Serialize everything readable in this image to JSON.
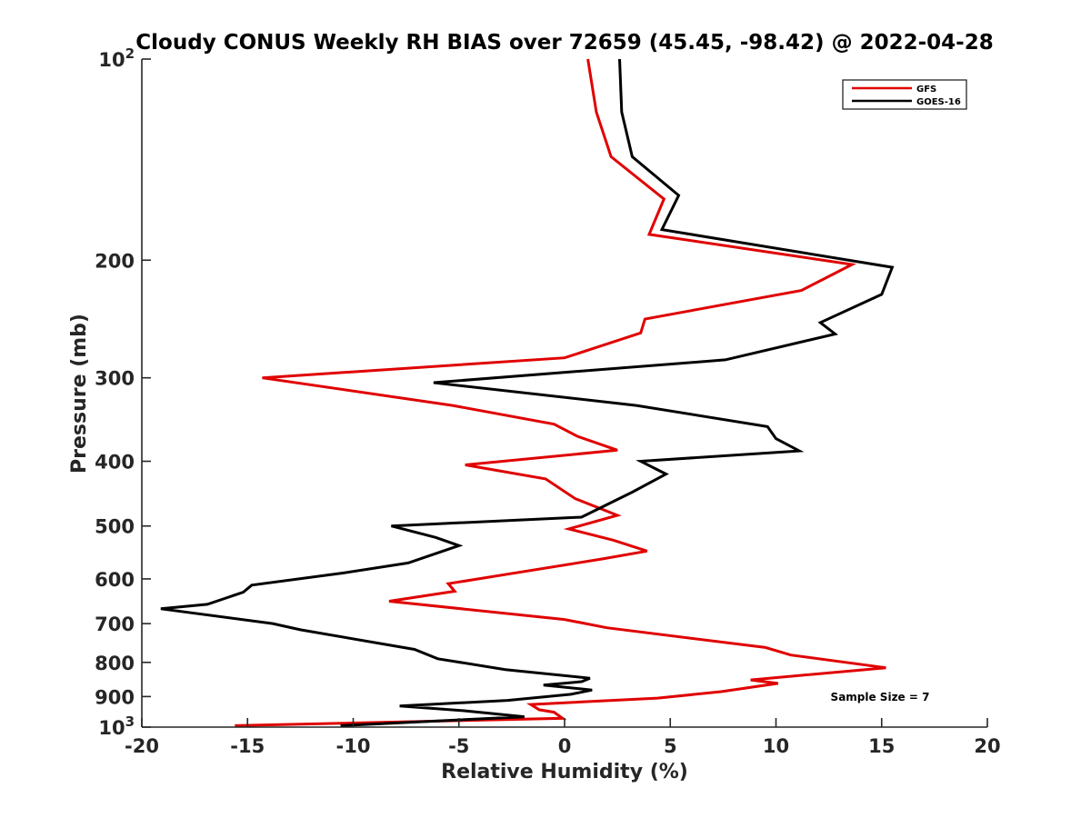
{
  "chart_data": {
    "type": "line",
    "title": "Cloudy CONUS Weekly RH BIAS over 72659 (45.45, -98.42) @ 2022-04-28",
    "xlabel": "Relative Humidity (%)",
    "ylabel": "Pressure (mb)",
    "xlim": [
      -20,
      20
    ],
    "ylim": [
      100,
      1000
    ],
    "yscale": "log",
    "y_reversed": true,
    "grid": false,
    "legend_position": "top-right",
    "x_ticks": [
      -20,
      -15,
      -10,
      -5,
      0,
      5,
      10,
      15,
      20
    ],
    "x_tick_labels": [
      "-20",
      "-15",
      "-10",
      "-5",
      "0",
      "5",
      "10",
      "15",
      "20"
    ],
    "y_ticks": [
      {
        "value": 100,
        "base": "10",
        "exp": "2"
      },
      {
        "value": 200,
        "label": "200"
      },
      {
        "value": 300,
        "label": "300"
      },
      {
        "value": 400,
        "label": "400"
      },
      {
        "value": 500,
        "label": "500"
      },
      {
        "value": 600,
        "label": "600"
      },
      {
        "value": 700,
        "label": "700"
      },
      {
        "value": 800,
        "label": "800"
      },
      {
        "value": 900,
        "label": "900"
      },
      {
        "value": 1000,
        "base": "10",
        "exp": "3"
      }
    ],
    "annotation": "Sample Size = 7",
    "series": [
      {
        "name": "GFS",
        "color": "#e00000",
        "points": [
          [
            1.1,
            100
          ],
          [
            1.5,
            120
          ],
          [
            2.2,
            140
          ],
          [
            4.7,
            162
          ],
          [
            4.0,
            183
          ],
          [
            13.6,
            203
          ],
          [
            11.2,
            222
          ],
          [
            3.8,
            245
          ],
          [
            3.6,
            257
          ],
          [
            0.0,
            280
          ],
          [
            -14.3,
            300
          ],
          [
            -5.3,
            330
          ],
          [
            -0.5,
            352
          ],
          [
            0.6,
            367
          ],
          [
            2.5,
            385
          ],
          [
            -4.7,
            405
          ],
          [
            -0.9,
            425
          ],
          [
            0.5,
            455
          ],
          [
            2.5,
            482
          ],
          [
            0.2,
            505
          ],
          [
            2.3,
            525
          ],
          [
            3.9,
            545
          ],
          [
            1.8,
            560
          ],
          [
            -5.5,
            610
          ],
          [
            -5.2,
            626
          ],
          [
            -8.3,
            648
          ],
          [
            0.0,
            690
          ],
          [
            2.0,
            710
          ],
          [
            9.5,
            760
          ],
          [
            10.7,
            780
          ],
          [
            15.2,
            815
          ],
          [
            8.8,
            850
          ],
          [
            10.1,
            860
          ],
          [
            7.4,
            885
          ],
          [
            4.4,
            905
          ],
          [
            -1.6,
            925
          ],
          [
            -1.2,
            942
          ],
          [
            -0.5,
            950
          ],
          [
            -0.1,
            970
          ],
          [
            -15.6,
            995
          ]
        ]
      },
      {
        "name": "GOES-16",
        "color": "#000000",
        "points": [
          [
            2.6,
            100
          ],
          [
            2.7,
            120
          ],
          [
            3.2,
            140
          ],
          [
            5.4,
            160
          ],
          [
            4.6,
            180
          ],
          [
            15.5,
            205
          ],
          [
            15.0,
            225
          ],
          [
            12.1,
            248
          ],
          [
            12.8,
            258
          ],
          [
            7.6,
            282
          ],
          [
            -6.2,
            305
          ],
          [
            3.4,
            330
          ],
          [
            9.6,
            355
          ],
          [
            10.0,
            370
          ],
          [
            11.1,
            386
          ],
          [
            3.6,
            400
          ],
          [
            4.8,
            418
          ],
          [
            3.2,
            445
          ],
          [
            0.8,
            485
          ],
          [
            -8.2,
            500
          ],
          [
            -6.1,
            520
          ],
          [
            -5.0,
            535
          ],
          [
            -7.4,
            568
          ],
          [
            -10.5,
            588
          ],
          [
            -14.8,
            613
          ],
          [
            -15.2,
            628
          ],
          [
            -16.9,
            655
          ],
          [
            -19.1,
            665
          ],
          [
            -13.8,
            700
          ],
          [
            -12.5,
            715
          ],
          [
            -7.1,
            765
          ],
          [
            -6.0,
            790
          ],
          [
            -2.8,
            820
          ],
          [
            1.2,
            845
          ],
          [
            0.8,
            855
          ],
          [
            -1.0,
            865
          ],
          [
            1.3,
            880
          ],
          [
            0.3,
            893
          ],
          [
            -2.7,
            912
          ],
          [
            -7.8,
            930
          ],
          [
            -4.8,
            945
          ],
          [
            -1.9,
            965
          ],
          [
            -10.6,
            995
          ]
        ]
      }
    ]
  }
}
